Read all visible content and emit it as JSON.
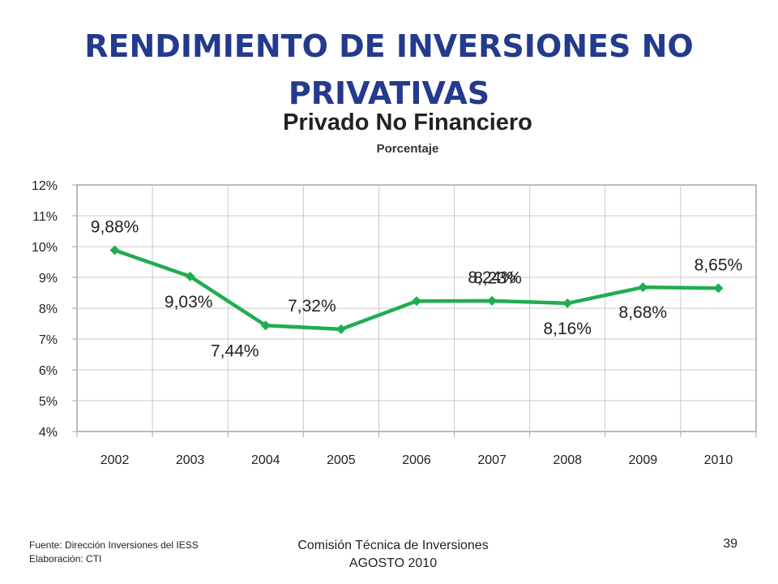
{
  "slide": {
    "title": "RENDIMIENTO DE INVERSIONES NO PRIVATIVAS"
  },
  "chart_data": {
    "type": "line",
    "title": "Privado No Financiero",
    "subtitle": "Porcentaje",
    "categories": [
      "2002",
      "2003",
      "2004",
      "2005",
      "2006",
      "2007",
      "2008",
      "2009",
      "2010"
    ],
    "series": [
      {
        "values": [
          9.88,
          9.03,
          7.44,
          7.32,
          8.23,
          8.24,
          8.16,
          8.68,
          8.65
        ],
        "labels": [
          "9,88%",
          "9,03%",
          "7,44%",
          "7,32%",
          "8,23%",
          "8,24%",
          "8,16%",
          "8,68%",
          "8,65%"
        ],
        "color": "#1fae4e"
      }
    ],
    "ylim": [
      4,
      12
    ],
    "yticks": [
      "4%",
      "5%",
      "6%",
      "7%",
      "8%",
      "9%",
      "10%",
      "11%",
      "12%"
    ],
    "grid": true,
    "gridColor": "#c8c8c8",
    "legend": "none"
  },
  "footer": {
    "source": "Fuente: Dirección Inversiones del IESS",
    "prepared_by": "Elaboración: CTI",
    "center_line1": "Comisión Técnica de Inversiones",
    "center_line2": "AGOSTO 2010",
    "page_number": "39"
  }
}
